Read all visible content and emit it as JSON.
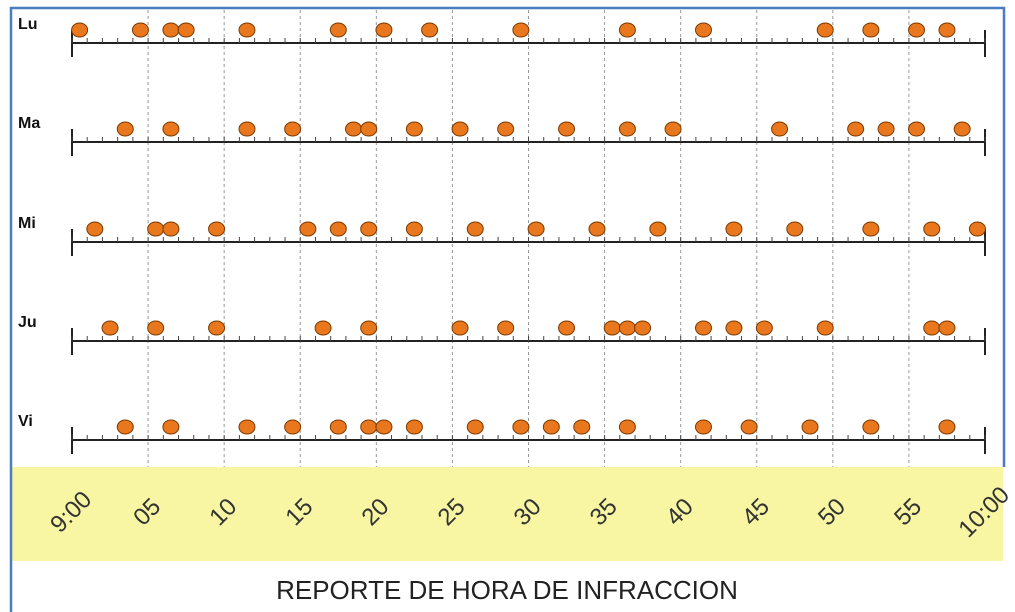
{
  "chart_data": {
    "type": "strip",
    "title": "REPORTE DE HORA DE INFRACCION",
    "xlim": [
      0,
      60
    ],
    "xticks": [
      {
        "value": 0,
        "label": "9:00"
      },
      {
        "value": 5,
        "label": "05"
      },
      10,
      15,
      20,
      25,
      30,
      35,
      40,
      45,
      50,
      55,
      {
        "value": 60,
        "label": "10:00"
      }
    ],
    "minor_tick_interval": 1,
    "grid": true,
    "series": [
      {
        "name": "Lu",
        "color": "#e8771e",
        "values": [
          0.5,
          4.5,
          6.5,
          7.5,
          11.5,
          17.5,
          20.5,
          23.5,
          29.5,
          36.5,
          41.5,
          49.5,
          52.5,
          55.5,
          57.5
        ]
      },
      {
        "name": "Ma",
        "color": "#e8771e",
        "values": [
          3.5,
          6.5,
          11.5,
          14.5,
          18.5,
          19.5,
          22.5,
          25.5,
          28.5,
          32.5,
          36.5,
          39.5,
          46.5,
          51.5,
          53.5,
          55.5,
          58.5
        ]
      },
      {
        "name": "Mi",
        "color": "#e8771e",
        "values": [
          1.5,
          5.5,
          6.5,
          9.5,
          15.5,
          17.5,
          19.5,
          22.5,
          26.5,
          30.5,
          34.5,
          38.5,
          43.5,
          47.5,
          52.5,
          56.5,
          59.5
        ]
      },
      {
        "name": "Ju",
        "color": "#e8771e",
        "values": [
          2.5,
          5.5,
          9.5,
          16.5,
          19.5,
          25.5,
          28.5,
          32.5,
          35.5,
          36.5,
          37.5,
          41.5,
          43.5,
          45.5,
          49.5,
          56.5,
          57.5
        ]
      },
      {
        "name": "Vi",
        "color": "#e8771e",
        "values": [
          3.5,
          6.5,
          11.5,
          14.5,
          17.5,
          19.5,
          20.5,
          22.5,
          26.5,
          29.5,
          31.5,
          33.5,
          36.5,
          41.5,
          44.5,
          48.5,
          52.5,
          57.5
        ]
      }
    ]
  }
}
